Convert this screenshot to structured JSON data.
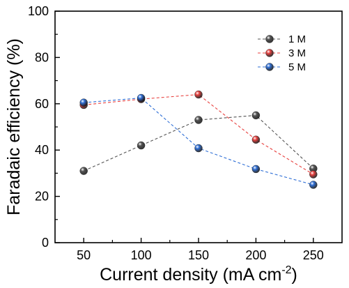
{
  "chart_data": {
    "type": "line",
    "x": [
      50,
      100,
      150,
      200,
      250
    ],
    "xlim": [
      25,
      275
    ],
    "ylim": [
      0,
      100
    ],
    "xticks": [
      50,
      100,
      150,
      200,
      250
    ],
    "yticks": [
      0,
      20,
      40,
      60,
      80,
      100
    ],
    "xlabel": "Current density (mA cm",
    "xlabel_sup": "-2",
    "xlabel_end": ")",
    "ylabel": "Faradaic efficiency (%)",
    "grid": false,
    "legend_position": "top-right",
    "series": [
      {
        "name": "1 M",
        "color": "#555555",
        "values": [
          31,
          42,
          53,
          55,
          32
        ]
      },
      {
        "name": "3 M",
        "color": "#e8413f",
        "values": [
          59.5,
          62,
          64,
          44.5,
          29.5
        ]
      },
      {
        "name": "5 M",
        "color": "#2f6fd6",
        "values": [
          60.5,
          62.5,
          40.8,
          31.8,
          25
        ]
      }
    ]
  }
}
